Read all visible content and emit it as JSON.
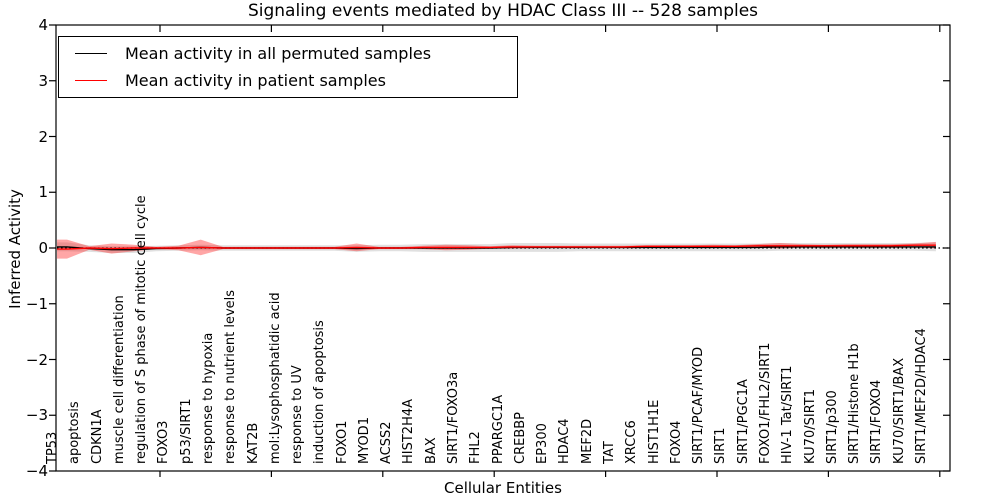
{
  "title": "Signaling events mediated by HDAC Class III -- 528 samples",
  "axes": {
    "x_label": "Cellular Entities",
    "y_label": "Inferred Activity",
    "y_tick_labels": [
      "4",
      "3",
      "2",
      "1",
      "0",
      "−1",
      "−2",
      "−3",
      "−4"
    ]
  },
  "legend": {
    "entries": [
      {
        "label": "Mean activity in all permuted samples",
        "color": "#000000"
      },
      {
        "label": "Mean activity in patient samples",
        "color": "#ff0000"
      }
    ]
  },
  "chart_data": {
    "type": "line",
    "title": "Signaling events mediated by HDAC Class III -- 528 samples",
    "xlabel": "Cellular Entities",
    "ylabel": "Inferred Activity",
    "ylim": [
      -4,
      4
    ],
    "grid": false,
    "legend_position": "upper left",
    "zero_reference_line": true,
    "categories": [
      "TP53",
      "apoptosis",
      "CDKN1A",
      "muscle cell differentiation",
      "regulation of S phase of mitotic cell cycle",
      "FOXO3",
      "p53/SIRT1",
      "response to hypoxia",
      "response to nutrient levels",
      "KAT2B",
      "mol:Lysophosphatidic acid",
      "response to UV",
      "induction of apoptosis",
      "FOXO1",
      "MYOD1",
      "ACSS2",
      "HIST2H4A",
      "BAX",
      "SIRT1/FOXO3a",
      "FHL2",
      "PPARGC1A",
      "CREBBP",
      "EP300",
      "HDAC4",
      "MEF2D",
      "TAT",
      "XRCC6",
      "HIST1H1E",
      "FOXO4",
      "SIRT1/PCAF/MYOD",
      "SIRT1",
      "SIRT1/PGC1A",
      "FOXO1/FHL2/SIRT1",
      "HIV-1 Tat/SIRT1",
      "KU70/SIRT1",
      "SIRT1/p300",
      "SIRT1/Histone H1b",
      "SIRT1/FOXO4",
      "KU70/SIRT1/BAX",
      "SIRT1/MEF2D/HDAC4"
    ],
    "series": [
      {
        "name": "Mean activity in all permuted samples",
        "color": "#000000",
        "band_color": "#bbbbbb",
        "band_opacity": 0.45,
        "values": [
          0.02,
          -0.01,
          -0.03,
          -0.03,
          -0.01,
          0,
          0.01,
          0,
          0,
          0,
          0,
          0,
          0,
          -0.01,
          0,
          0,
          0,
          0,
          0,
          0,
          0.01,
          0.01,
          0.01,
          0.01,
          0.01,
          0.01,
          0.01,
          0.01,
          0.01,
          0.01,
          0.01,
          0.01,
          0.02,
          0.02,
          0.02,
          0.02,
          0.02,
          0.02,
          0.02,
          0.02
        ],
        "band": [
          0.08,
          0.06,
          0.06,
          0.06,
          0.05,
          0.05,
          0.05,
          0.05,
          0.05,
          0.05,
          0.05,
          0.05,
          0.05,
          0.06,
          0.06,
          0.06,
          0.07,
          0.07,
          0.07,
          0.07,
          0.08,
          0.08,
          0.08,
          0.07,
          0.07,
          0.07,
          0.07,
          0.07,
          0.07,
          0.07,
          0.07,
          0.07,
          0.07,
          0.07,
          0.07,
          0.07,
          0.07,
          0.07,
          0.07,
          0.08
        ]
      },
      {
        "name": "Mean activity in patient samples",
        "color": "#ff0000",
        "band_color": "#ff0000",
        "band_opacity": 0.35,
        "values": [
          -0.02,
          0,
          -0.01,
          0,
          0,
          0,
          0.01,
          0,
          0,
          0,
          0,
          0,
          0,
          0.01,
          0,
          0,
          0.01,
          0.01,
          0.01,
          0.01,
          0.02,
          0.02,
          0.02,
          0.02,
          0.02,
          0.02,
          0.03,
          0.03,
          0.03,
          0.03,
          0.03,
          0.04,
          0.04,
          0.04,
          0.04,
          0.04,
          0.04,
          0.04,
          0.05,
          0.05
        ],
        "band": [
          0.17,
          0.03,
          0.09,
          0.06,
          0.02,
          0.04,
          0.14,
          0.02,
          0.02,
          0.02,
          0.02,
          0.02,
          0.02,
          0.07,
          0.02,
          0.02,
          0.03,
          0.05,
          0.04,
          0.02,
          0.03,
          0.02,
          0.02,
          0.02,
          0.02,
          0.02,
          0.02,
          0.02,
          0.02,
          0.03,
          0.02,
          0.03,
          0.05,
          0.03,
          0.02,
          0.03,
          0.03,
          0.03,
          0.03,
          0.06
        ]
      }
    ]
  }
}
